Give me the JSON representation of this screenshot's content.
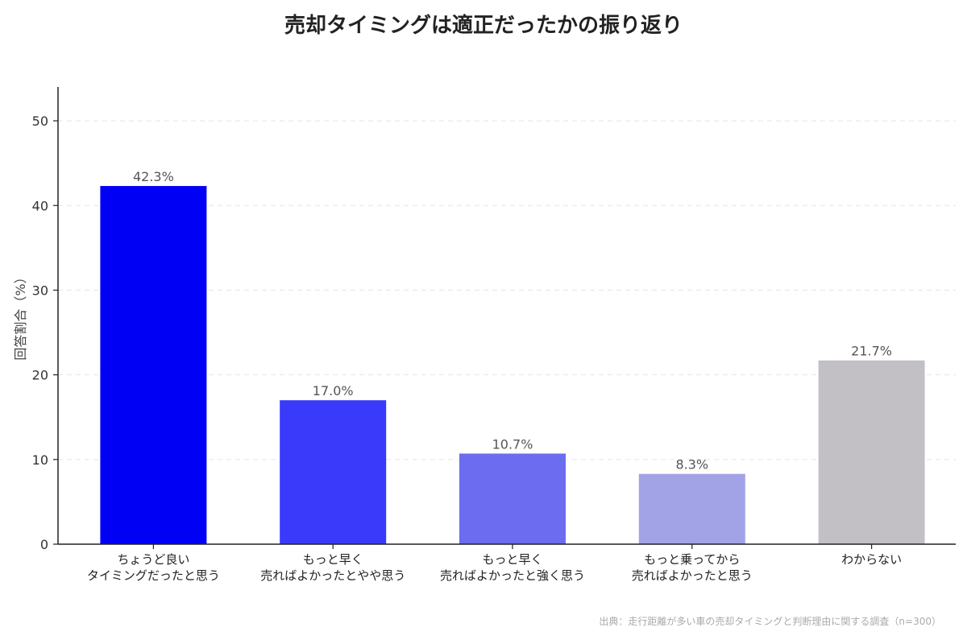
{
  "chart_data": {
    "type": "bar",
    "title": "売却タイミングは適正だったかの振り返り",
    "ylabel": "回答割合（%）",
    "xlabel": "",
    "ylim": [
      0,
      54
    ],
    "yticks": [
      0,
      10,
      20,
      30,
      40,
      50
    ],
    "grid": true,
    "categories": [
      [
        "ちょうど良い",
        "タイミングだったと思う"
      ],
      [
        "もっと早く",
        "売ればよかったとやや思う"
      ],
      [
        "もっと早く",
        "売ればよかったと強く思う"
      ],
      [
        "もっと乗ってから",
        "売ればよかったと思う"
      ],
      [
        "わからない"
      ]
    ],
    "values": [
      42.3,
      17.0,
      10.7,
      8.3,
      21.7
    ],
    "value_labels": [
      "42.3%",
      "17.0%",
      "10.7%",
      "8.3%",
      "21.7%"
    ],
    "colors": [
      "#0000f5",
      "#3a3afa",
      "#6c6cf0",
      "#a2a2e6",
      "#c2c0c4"
    ]
  },
  "source_note": "出典：走行距離が多い車の売却タイミングと判断理由に関する調査（n=300）"
}
